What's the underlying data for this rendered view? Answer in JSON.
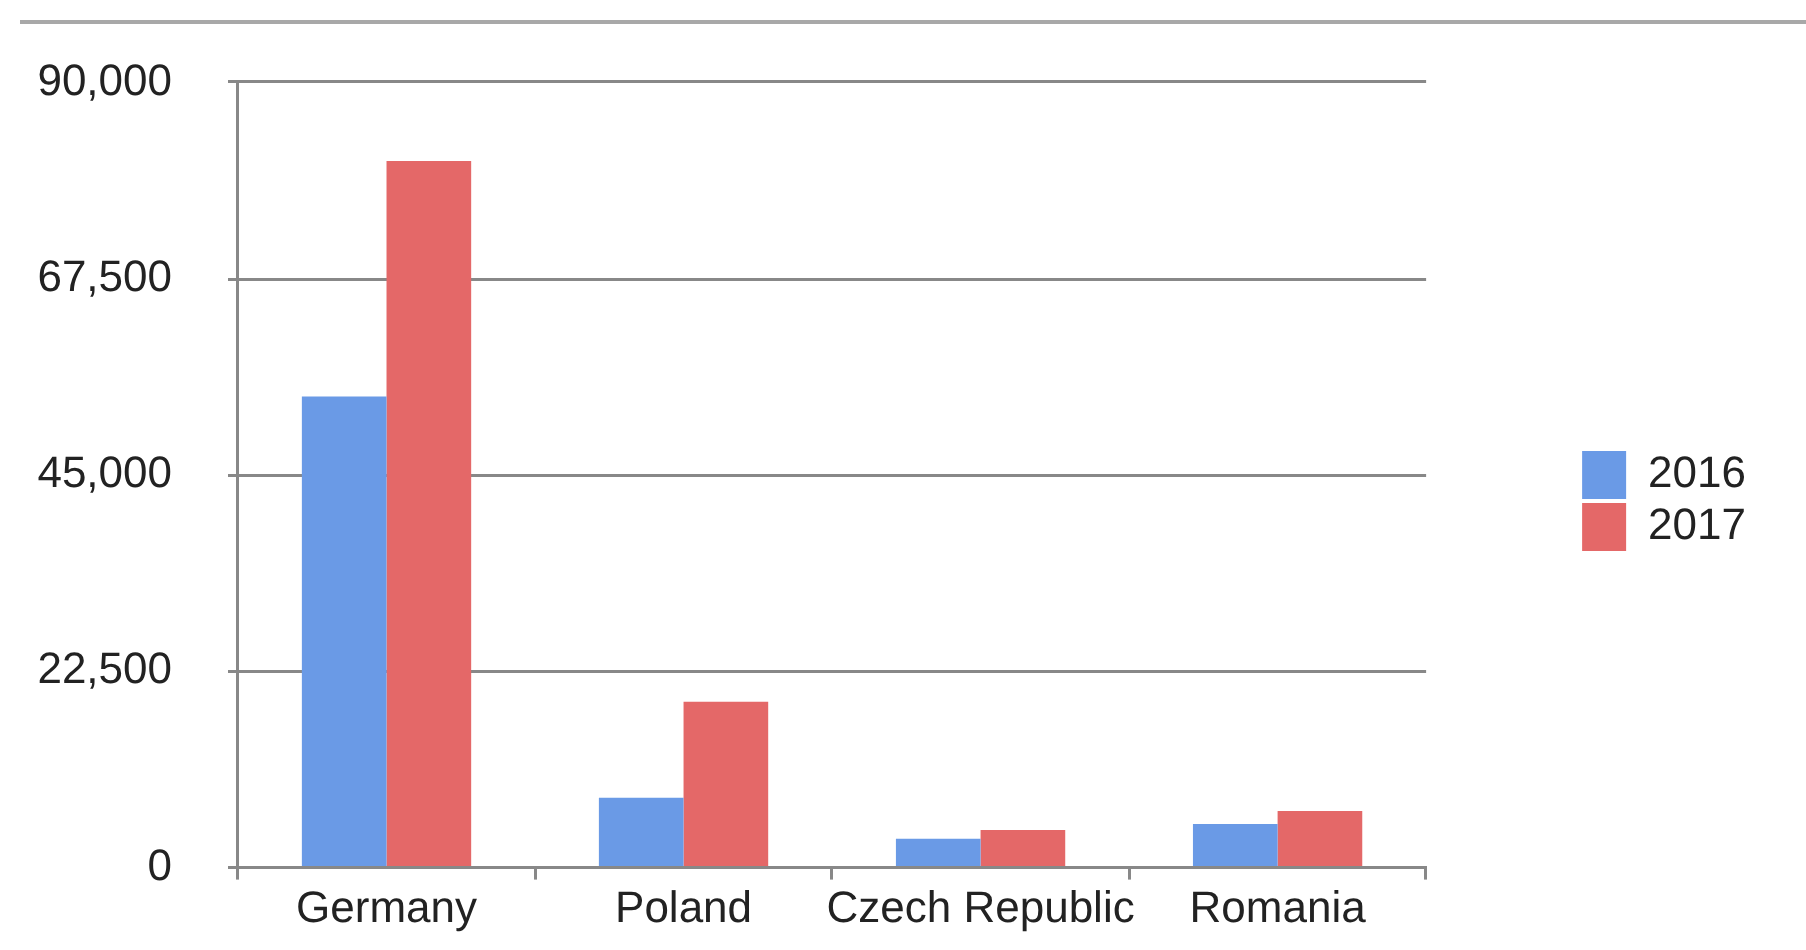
{
  "chart_data": {
    "type": "bar",
    "categories": [
      "Germany",
      "Poland",
      "Czech Republic",
      "Romania"
    ],
    "series": [
      {
        "name": "2016",
        "color": "#6a9ae6",
        "values": [
          54000,
          8000,
          3300,
          5000
        ]
      },
      {
        "name": "2017",
        "color": "#e46868",
        "values": [
          81000,
          19000,
          4300,
          6500
        ]
      }
    ],
    "ylim": [
      0,
      90000
    ],
    "yticks": [
      {
        "value": 0,
        "label": "0"
      },
      {
        "value": 22500,
        "label": "22,500"
      },
      {
        "value": 45000,
        "label": "45,000"
      },
      {
        "value": 67500,
        "label": "67,500"
      },
      {
        "value": 90000,
        "label": "90,000"
      }
    ],
    "grid": "y",
    "legend": "right"
  }
}
